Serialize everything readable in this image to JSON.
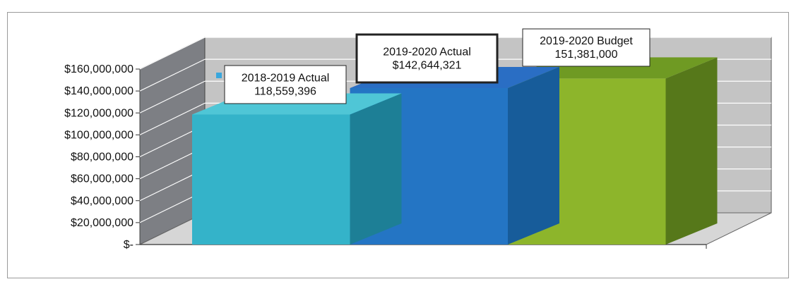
{
  "chart_data": {
    "type": "bar",
    "style": "3d-clustered",
    "categories": [
      "2018-2019 Actual",
      "2019-2020 Actual",
      "2019-2020 Budget"
    ],
    "values": [
      118559396,
      142644321,
      151381000
    ],
    "data_labels": [
      [
        "2018-2019 Actual",
        "118,559,396"
      ],
      [
        "2019-2020 Actual",
        "$142,644,321"
      ],
      [
        "2019-2020 Budget",
        "151,381,000"
      ]
    ],
    "colors": [
      "#34b3c9",
      "#2475c4",
      "#8db52b"
    ],
    "side_colors": [
      "#1d7f96",
      "#175c9a",
      "#56781a"
    ],
    "top_colors": [
      "#4fc6d6",
      "#2a6ec4",
      "#6f9a23"
    ],
    "legend_marker_color": "#3aa7dd",
    "y_ticks": [
      "$-",
      "$20,000,000",
      "$40,000,000",
      "$60,000,000",
      "$80,000,000",
      "$100,000,000",
      "$120,000,000",
      "$140,000,000",
      "$160,000,000"
    ],
    "ylim": [
      0,
      160000000
    ],
    "grid": true,
    "title": "",
    "xlabel": "",
    "ylabel": ""
  }
}
